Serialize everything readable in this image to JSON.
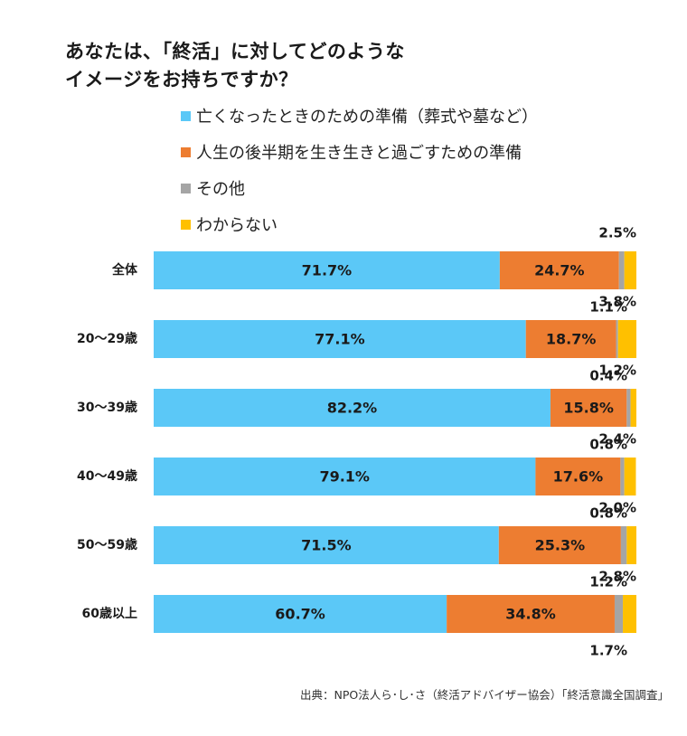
{
  "title": {
    "line1": "あなたは、「終活」に対してどのような",
    "line2": "イメージをお持ちですか？"
  },
  "source": "出典：NPO法人ら･し･さ（終活アドバイザー協会）「終活意識全国調査」",
  "colors": {
    "series1": "#5bc8f7",
    "series2": "#ed7d31",
    "series3": "#a5a5a5",
    "series4": "#ffc000"
  },
  "chart_data": {
    "type": "bar",
    "orientation": "horizontal",
    "stacked": true,
    "percent_stacked": true,
    "legend_position": "top",
    "grid": false,
    "categories": [
      "全体",
      "20～29歳",
      "30～39歳",
      "40～49歳",
      "50～59歳",
      "60歳以上"
    ],
    "series": [
      {
        "name": "亡くなったときのための準備（葬式や墓など）",
        "color": "#5bc8f7",
        "values": [
          71.7,
          77.1,
          82.2,
          79.1,
          71.5,
          60.7
        ],
        "labels": [
          "71.7%",
          "77.1%",
          "82.2%",
          "79.1%",
          "71.5%",
          "60.7%"
        ]
      },
      {
        "name": "人生の後半期を生き生きと過ごすための準備",
        "color": "#ed7d31",
        "values": [
          24.7,
          18.7,
          15.8,
          17.6,
          25.3,
          34.8
        ],
        "labels": [
          "24.7%",
          "18.7%",
          "15.8%",
          "17.6%",
          "25.3%",
          "34.8%"
        ]
      },
      {
        "name": "その他",
        "color": "#a5a5a5",
        "values": [
          1.1,
          0.4,
          0.8,
          0.8,
          1.2,
          1.7
        ],
        "labels": [
          "1.1%",
          "0.4%",
          "0.8%",
          "0.8%",
          "1.2%",
          "1.7%"
        ]
      },
      {
        "name": "わからない",
        "color": "#ffc000",
        "values": [
          2.5,
          3.8,
          1.2,
          2.4,
          2.0,
          2.8
        ],
        "labels": [
          "2.5%",
          "3.8%",
          "1.2%",
          "2.4%",
          "2.0%",
          "2.8%"
        ]
      }
    ]
  }
}
